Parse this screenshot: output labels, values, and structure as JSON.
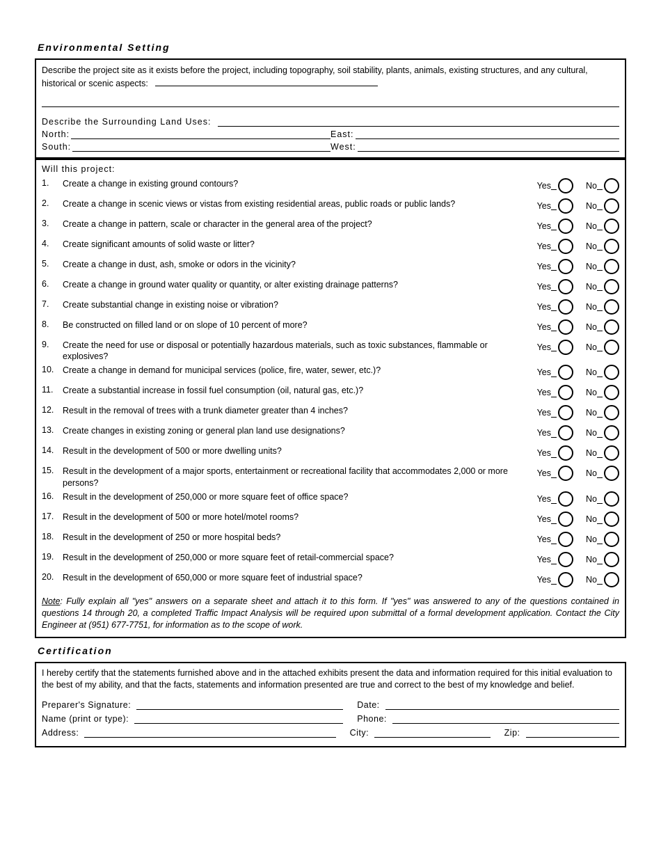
{
  "section1_title": "Environmental Setting",
  "describe_site": "Describe the project site as it exists before the project, including topography, soil stability, plants, animals, existing structures, and any cultural, historical or scenic aspects:",
  "describe_surrounding": "Describe the Surrounding Land Uses:",
  "dir": {
    "north": "North:",
    "east": "East:",
    "south": "South:",
    "west": "West:"
  },
  "question_header": "Will this project:",
  "yes": "Yes",
  "no": "No",
  "questions": [
    "Create a change in existing ground contours?",
    "Create a change in scenic views or vistas from existing residential areas, public roads or public lands?",
    "Create a change in pattern, scale or character in the general area of the project?",
    "Create significant amounts of solid waste or litter?",
    "Create a change in dust, ash, smoke or odors in the vicinity?",
    "Create a change in ground water quality or quantity, or alter existing drainage patterns?",
    "Create substantial change in existing noise or vibration?",
    "Be constructed on filled land or on slope of 10 percent of more?",
    "Create the need for use or disposal or potentially hazardous materials, such as toxic substances, flammable or explosives?",
    "Create a change in demand for municipal services (police, fire, water, sewer, etc.)?",
    "Create a substantial increase in fossil fuel consumption (oil, natural gas, etc.)?",
    "Result in the removal of trees with a trunk diameter greater than 4 inches?",
    "Create changes in existing zoning or general plan land use designations?",
    "Result in the development of 500 or more dwelling units?",
    "Result in the development of a major sports, entertainment or recreational facility that accommodates 2,000 or more persons?",
    "Result in the development of 250,000 or more square feet of office space?",
    "Result in the development of 500 or more hotel/motel rooms?",
    "Result in the development of 250 or more hospital beds?",
    "Result in the development of 250,000 or more square feet of retail-commercial space?",
    "Result in the development of 650,000 or more square feet of industrial space?"
  ],
  "note_label": "Note",
  "note_text": ": Fully explain all \"yes\" answers on a separate sheet and attach it to this form. If \"yes\" was answered to any of the questions contained in questions 14 through 20, a completed Traffic Impact Analysis will be required upon submittal of a formal development application.  Contact the City Engineer at (951) 677-7751, for information as to the scope of work.",
  "section2_title": "Certification",
  "cert_text": "I hereby certify that the statements furnished above and in the attached exhibits present the data and information required for this initial evaluation to the best of my ability, and that the facts, statements and information presented are true and correct to the best of my knowledge and belief.",
  "sig": {
    "preparer": "Preparer's Signature:",
    "date": "Date:",
    "name": "Name (print or type):",
    "phone": "Phone:",
    "address": "Address:",
    "city": "City:",
    "zip": "Zip:"
  }
}
